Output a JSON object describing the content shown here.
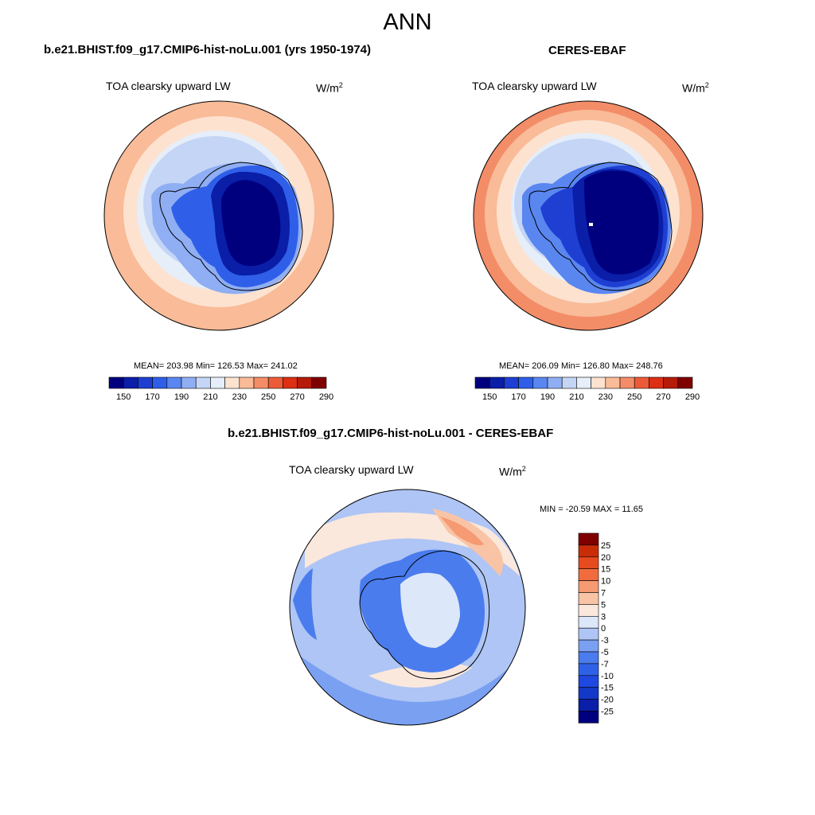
{
  "figure_title": "ANN",
  "units": {
    "base": "W/m",
    "exp": "2"
  },
  "colors": {
    "abs_palette": [
      "#00007f",
      "#0a1ea8",
      "#1e3fd2",
      "#2f5fe8",
      "#5a86f0",
      "#8faef3",
      "#c4d5f6",
      "#e5eef9",
      "#fde2d0",
      "#f9bb98",
      "#f38d68",
      "#ec5a37",
      "#dd2f14",
      "#b51b08",
      "#7f0000"
    ],
    "diff_palette": [
      "#00007f",
      "#0a1ea8",
      "#1338c8",
      "#1e48e0",
      "#2f61e8",
      "#4a7cee",
      "#7aa0f2",
      "#aec5f5",
      "#dce7f9",
      "#fbe8dc",
      "#f9c4a6",
      "#f59a72",
      "#f06c3e",
      "#e64a1e",
      "#c92d08",
      "#7f0000"
    ],
    "coastline": "#000000"
  },
  "panels": [
    {
      "title": "b.e21.BHIST.f09_g17.CMIP6-hist-noLu.001 (yrs 1950-1974)",
      "variable": "TOA clearsky upward LW",
      "stats": "MEAN= 203.98  Min= 126.53  Max= 241.02",
      "colorbar_ticks": [
        "150",
        "170",
        "190",
        "210",
        "230",
        "250",
        "270",
        "290"
      ]
    },
    {
      "title": "CERES-EBAF",
      "variable": "TOA clearsky upward LW",
      "stats": "MEAN= 206.09  Min= 126.80  Max= 248.76",
      "colorbar_ticks": [
        "150",
        "170",
        "190",
        "210",
        "230",
        "250",
        "270",
        "290"
      ]
    }
  ],
  "diff_panel": {
    "title": "b.e21.BHIST.f09_g17.CMIP6-hist-noLu.001 - CERES-EBAF",
    "variable": "TOA clearsky upward LW",
    "stats": "MIN = -20.59 MAX =  11.65",
    "colorbar_ticks": [
      "25",
      "20",
      "15",
      "10",
      "7",
      "5",
      "3",
      "0",
      "-3",
      "-5",
      "-7",
      "-10",
      "-15",
      "-20",
      "-25"
    ]
  }
}
